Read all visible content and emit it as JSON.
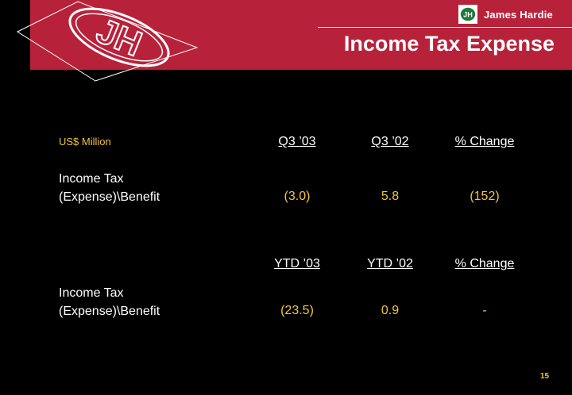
{
  "header": {
    "brand_name": "James Hardie",
    "title": "Income Tax Expense",
    "logo_text": "JH"
  },
  "table": {
    "unit_label": "US$ Million",
    "section1": {
      "columns": [
        "Q3 ’03",
        "Q3 ’02",
        "% Change"
      ],
      "row_label_line1": "Income Tax",
      "row_label_line2": "(Expense)\\Benefit",
      "values": [
        "(3.0)",
        "5.8",
        "(152)"
      ]
    },
    "section2": {
      "columns": [
        "YTD ’03",
        "YTD ’02",
        "% Change"
      ],
      "row_label_line1": "Income Tax",
      "row_label_line2": "(Expense)\\Benefit",
      "values": [
        "(23.5)",
        "0.9",
        "-"
      ]
    }
  },
  "footer": {
    "page_number": "15"
  },
  "colors": {
    "banner": "#b7223a",
    "value_text": "#f2c436",
    "header_text": "#ffffff"
  }
}
